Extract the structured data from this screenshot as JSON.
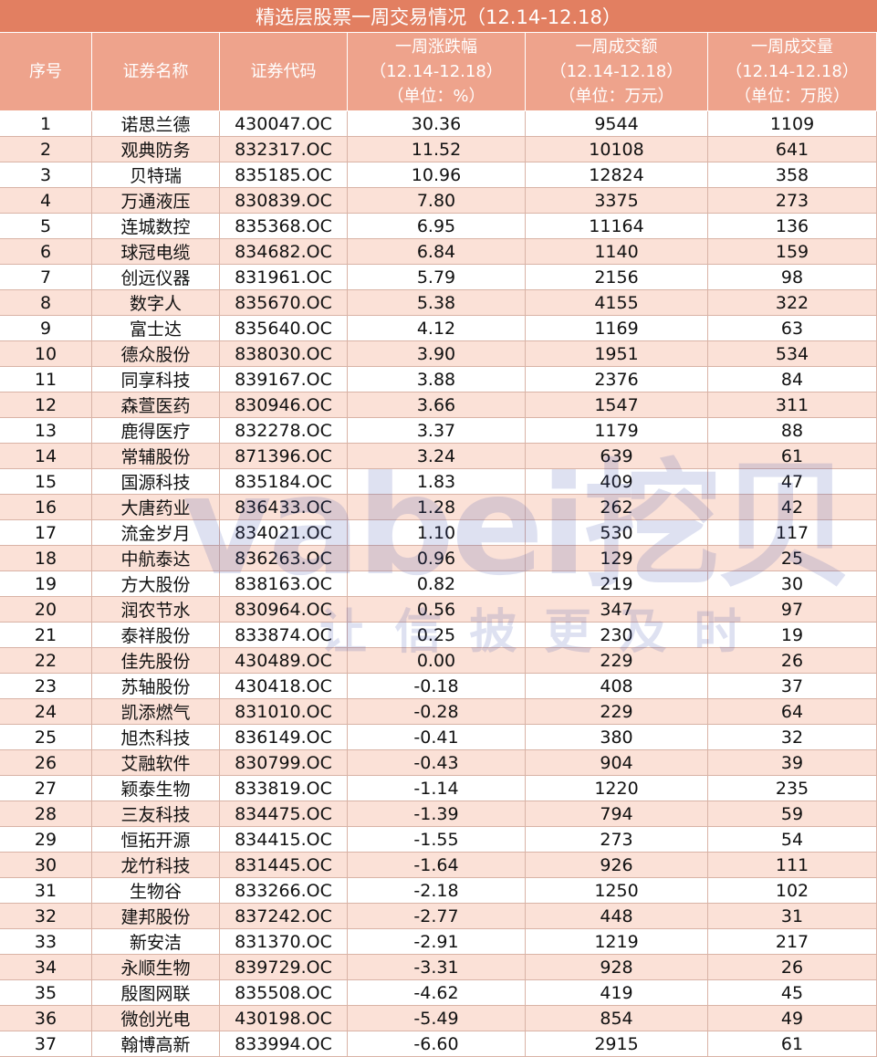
{
  "title": "精选层股票一周交易情况（12.14-12.18）",
  "table": {
    "headers": [
      [
        "序号"
      ],
      [
        "证券名称"
      ],
      [
        "证券代码"
      ],
      [
        "一周涨跌幅",
        "（12.14-12.18）",
        "（单位：%）"
      ],
      [
        "一周成交额",
        "（12.14-12.18）",
        "（单位：万元）"
      ],
      [
        "一周成交量",
        "（12.14-12.18）",
        "（单位：万股）"
      ]
    ],
    "rows": [
      [
        "1",
        "诺思兰德",
        "430047.OC",
        "30.36",
        "9544",
        "1109"
      ],
      [
        "2",
        "观典防务",
        "832317.OC",
        "11.52",
        "10108",
        "641"
      ],
      [
        "3",
        "贝特瑞",
        "835185.OC",
        "10.96",
        "12824",
        "358"
      ],
      [
        "4",
        "万通液压",
        "830839.OC",
        "7.80",
        "3375",
        "273"
      ],
      [
        "5",
        "连城数控",
        "835368.OC",
        "6.95",
        "11164",
        "136"
      ],
      [
        "6",
        "球冠电缆",
        "834682.OC",
        "6.84",
        "1140",
        "159"
      ],
      [
        "7",
        "创远仪器",
        "831961.OC",
        "5.79",
        "2156",
        "98"
      ],
      [
        "8",
        "数字人",
        "835670.OC",
        "5.38",
        "4155",
        "322"
      ],
      [
        "9",
        "富士达",
        "835640.OC",
        "4.12",
        "1169",
        "63"
      ],
      [
        "10",
        "德众股份",
        "838030.OC",
        "3.90",
        "1951",
        "534"
      ],
      [
        "11",
        "同享科技",
        "839167.OC",
        "3.88",
        "2376",
        "84"
      ],
      [
        "12",
        "森萱医药",
        "830946.OC",
        "3.66",
        "1547",
        "311"
      ],
      [
        "13",
        "鹿得医疗",
        "832278.OC",
        "3.37",
        "1179",
        "88"
      ],
      [
        "14",
        "常辅股份",
        "871396.OC",
        "3.24",
        "639",
        "61"
      ],
      [
        "15",
        "国源科技",
        "835184.OC",
        "1.83",
        "409",
        "47"
      ],
      [
        "16",
        "大唐药业",
        "836433.OC",
        "1.28",
        "262",
        "42"
      ],
      [
        "17",
        "流金岁月",
        "834021.OC",
        "1.10",
        "530",
        "117"
      ],
      [
        "18",
        "中航泰达",
        "836263.OC",
        "0.96",
        "129",
        "25"
      ],
      [
        "19",
        "方大股份",
        "838163.OC",
        "0.82",
        "219",
        "30"
      ],
      [
        "20",
        "润农节水",
        "830964.OC",
        "0.56",
        "347",
        "97"
      ],
      [
        "21",
        "泰祥股份",
        "833874.OC",
        "0.25",
        "230",
        "19"
      ],
      [
        "22",
        "佳先股份",
        "430489.OC",
        "0.00",
        "229",
        "26"
      ],
      [
        "23",
        "苏轴股份",
        "430418.OC",
        "-0.18",
        "408",
        "37"
      ],
      [
        "24",
        "凯添燃气",
        "831010.OC",
        "-0.28",
        "229",
        "64"
      ],
      [
        "25",
        "旭杰科技",
        "836149.OC",
        "-0.41",
        "380",
        "32"
      ],
      [
        "26",
        "艾融软件",
        "830799.OC",
        "-0.43",
        "904",
        "39"
      ],
      [
        "27",
        "颖泰生物",
        "833819.OC",
        "-1.14",
        "1220",
        "235"
      ],
      [
        "28",
        "三友科技",
        "834475.OC",
        "-1.39",
        "794",
        "59"
      ],
      [
        "29",
        "恒拓开源",
        "834415.OC",
        "-1.55",
        "273",
        "54"
      ],
      [
        "30",
        "龙竹科技",
        "831445.OC",
        "-1.64",
        "926",
        "111"
      ],
      [
        "31",
        "生物谷",
        "833266.OC",
        "-2.18",
        "1250",
        "102"
      ],
      [
        "32",
        "建邦股份",
        "837242.OC",
        "-2.77",
        "448",
        "31"
      ],
      [
        "33",
        "新安洁",
        "831370.OC",
        "-2.91",
        "1219",
        "217"
      ],
      [
        "34",
        "永顺生物",
        "839729.OC",
        "-3.31",
        "928",
        "26"
      ],
      [
        "35",
        "殷图网联",
        "835508.OC",
        "-4.62",
        "419",
        "45"
      ],
      [
        "36",
        "微创光电",
        "430198.OC",
        "-5.49",
        "854",
        "49"
      ],
      [
        "37",
        "翰博高新",
        "833994.OC",
        "-6.60",
        "2915",
        "61"
      ]
    ]
  },
  "watermark": {
    "brand": "vabei挖贝",
    "slogan": "让 信 披 更 及 时"
  }
}
